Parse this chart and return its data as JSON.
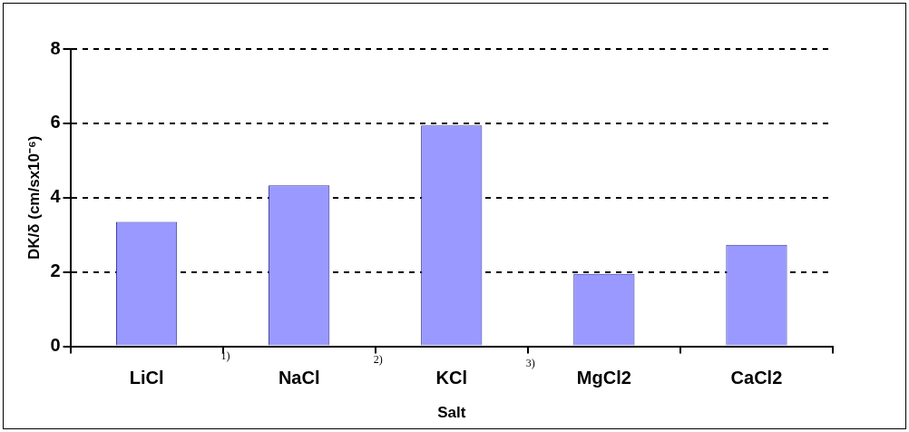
{
  "chart_data": {
    "type": "bar",
    "xlabel": "Salt",
    "ylabel": "DK/δ (cm/sx10⁻⁶)",
    "categories": [
      "LiCl",
      "NaCl",
      "KCl",
      "MgCl2",
      "CaCl2"
    ],
    "values": [
      3.35,
      4.33,
      5.94,
      1.95,
      2.73
    ],
    "color": "#9999ff",
    "ylim": [
      0,
      8
    ],
    "yticks": [
      0,
      2,
      4,
      6,
      8
    ],
    "grid": "y",
    "annotations": [
      "1)",
      "2)",
      "3)"
    ]
  }
}
